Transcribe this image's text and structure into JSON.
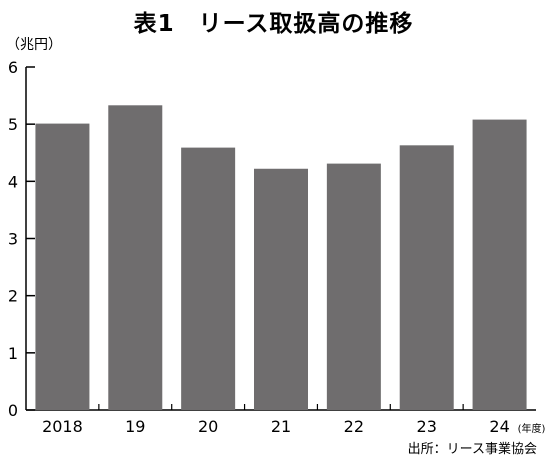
{
  "title": "表1　リース取扱高の推移",
  "unit_label": "（兆円）",
  "source": "出所：リース事業協会",
  "chart_data": {
    "type": "bar",
    "categories": [
      "2018",
      "19",
      "20",
      "21",
      "22",
      "23",
      "24"
    ],
    "x_suffix": "(年度)",
    "values": [
      5.01,
      5.33,
      4.59,
      4.22,
      4.31,
      4.63,
      5.08
    ],
    "ylim": [
      0,
      6
    ],
    "yticks": [
      "0",
      "1",
      "2",
      "3",
      "4",
      "5",
      "6"
    ],
    "grid": false,
    "bar_color": "#6f6d6e"
  }
}
